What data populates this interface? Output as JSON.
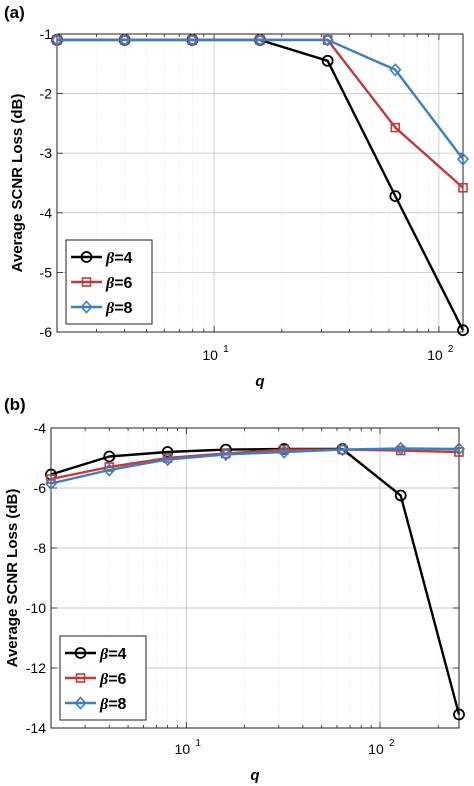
{
  "chart_data": [
    {
      "type": "line",
      "panel_label": "(a)",
      "xlabel": "q",
      "ylabel": "Average SCNR Loss (dB)",
      "xscale": "log",
      "xlim": [
        2,
        128
      ],
      "ylim": [
        -6,
        -1
      ],
      "yticks": [
        -1,
        -2,
        -3,
        -4,
        -5,
        -6
      ],
      "xticks": [
        {
          "base": "10",
          "exp": "1",
          "value": 10
        },
        {
          "base": "10",
          "exp": "2",
          "value": 100
        }
      ],
      "grid": true,
      "legend_position": "bottom-left",
      "x": [
        2,
        4,
        8,
        16,
        32,
        64,
        128
      ],
      "series": [
        {
          "name": "β=4",
          "greek": "β",
          "suffix": "=4",
          "color": "#000000",
          "marker": "circle",
          "values": [
            -1.1,
            -1.1,
            -1.1,
            -1.1,
            -1.45,
            -3.72,
            -5.97
          ]
        },
        {
          "name": "β=6",
          "greek": "β",
          "suffix": "=6",
          "color": "#c33a3a",
          "marker": "square",
          "values": [
            -1.1,
            -1.1,
            -1.1,
            -1.1,
            -1.1,
            -2.57,
            -3.58
          ]
        },
        {
          "name": "β=8",
          "greek": "β",
          "suffix": "=8",
          "color": "#3c7fc0",
          "marker": "diamond",
          "values": [
            -1.1,
            -1.1,
            -1.1,
            -1.1,
            -1.1,
            -1.6,
            -3.1
          ]
        }
      ]
    },
    {
      "type": "line",
      "panel_label": "(b)",
      "xlabel": "q",
      "ylabel": "Average SCNR Loss (dB)",
      "xscale": "log",
      "xlim": [
        2,
        256
      ],
      "ylim": [
        -14,
        -4
      ],
      "yticks": [
        -4,
        -6,
        -8,
        -10,
        -12,
        -14
      ],
      "xticks": [
        {
          "base": "10",
          "exp": "1",
          "value": 10
        },
        {
          "base": "10",
          "exp": "2",
          "value": 100
        }
      ],
      "grid": true,
      "legend_position": "bottom-left",
      "x": [
        2,
        4,
        8,
        16,
        32,
        64,
        128,
        256
      ],
      "series": [
        {
          "name": "β=4",
          "greek": "β",
          "suffix": "=4",
          "color": "#000000",
          "marker": "circle",
          "values": [
            -5.55,
            -4.95,
            -4.8,
            -4.72,
            -4.7,
            -4.7,
            -6.25,
            -13.55
          ]
        },
        {
          "name": "β=6",
          "greek": "β",
          "suffix": "=6",
          "color": "#c33a3a",
          "marker": "square",
          "values": [
            -5.7,
            -5.3,
            -5.0,
            -4.85,
            -4.72,
            -4.72,
            -4.75,
            -4.8
          ]
        },
        {
          "name": "β=8",
          "greek": "β",
          "suffix": "=8",
          "color": "#3c7fc0",
          "marker": "diamond",
          "values": [
            -5.85,
            -5.4,
            -5.05,
            -4.88,
            -4.8,
            -4.72,
            -4.68,
            -4.7
          ]
        }
      ]
    }
  ]
}
